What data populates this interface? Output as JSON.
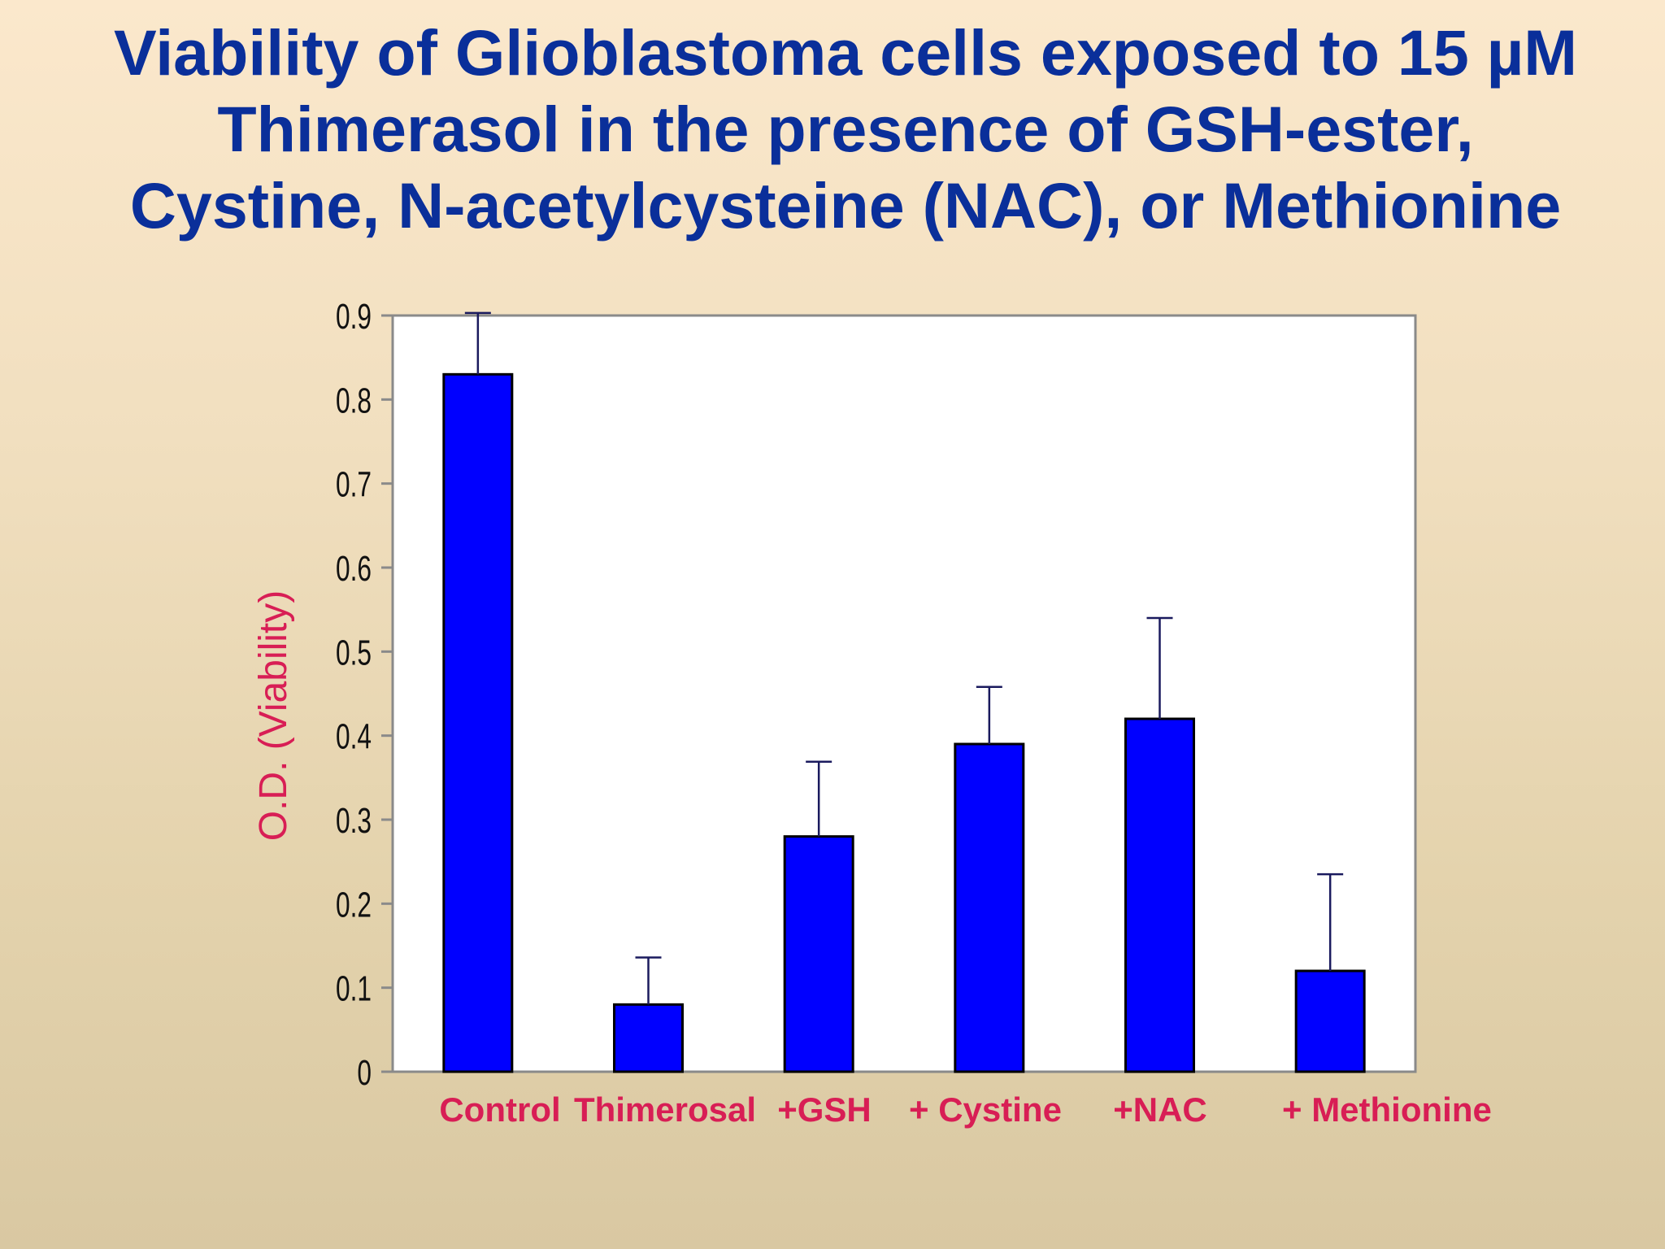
{
  "title_lines": [
    "Viability of Glioblastoma cells exposed to 15 µM",
    "Thimerasol in the presence of GSH-ester,",
    "Cystine, N-acetylcysteine (NAC), or Methionine"
  ],
  "chart_data": {
    "type": "bar",
    "categories": [
      "Control",
      "Thimerosal",
      "+GSH",
      "+ Cystine",
      "+NAC",
      "+ Methionine"
    ],
    "values": [
      0.83,
      0.08,
      0.28,
      0.39,
      0.42,
      0.12
    ],
    "error_upper": [
      0.073,
      0.056,
      0.089,
      0.068,
      0.12,
      0.115
    ],
    "ylabel": "O.D. (Viability)",
    "ylim": [
      0,
      0.9
    ],
    "yticks": [
      "0",
      "0.1",
      "0.2",
      "0.3",
      "0.4",
      "0.5",
      "0.6",
      "0.7",
      "0.8",
      "0.9"
    ],
    "bar_color": "#0000ff",
    "plot_background": "#ffffff",
    "error_bar_color": "#1a1a5e",
    "category_label_color": "#d81e55",
    "ylabel_color": "#d81e55",
    "grid": false,
    "legend": "none"
  }
}
